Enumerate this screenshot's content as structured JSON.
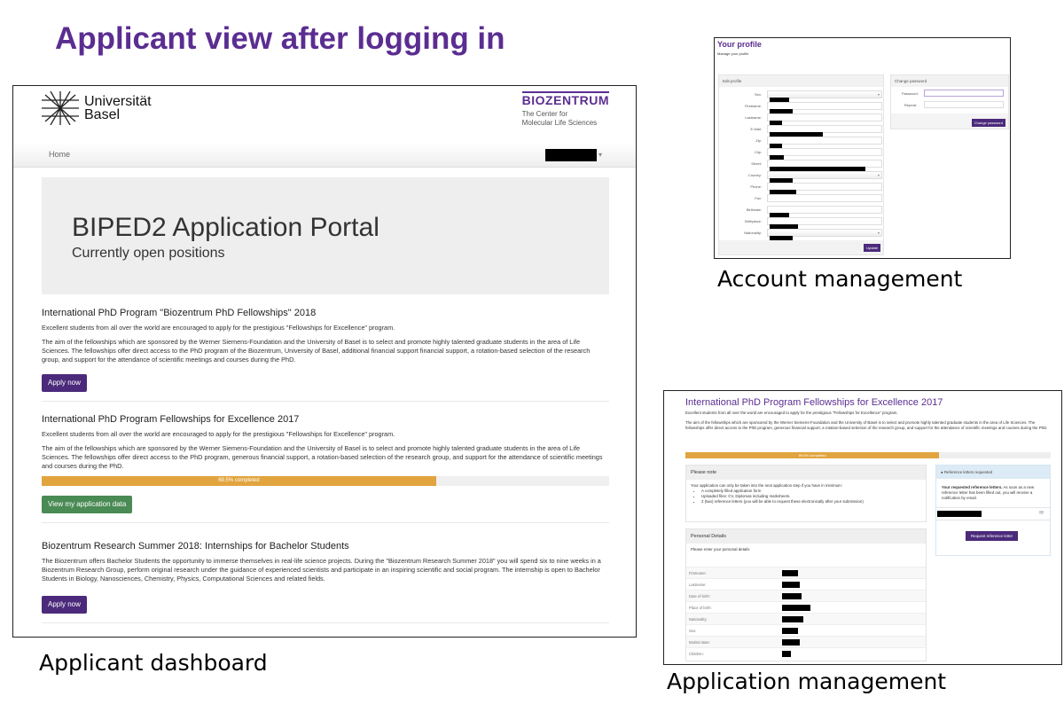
{
  "slide": {
    "title": "Applicant view after logging in",
    "captions": {
      "dashboard": "Applicant dashboard",
      "account": "Account management",
      "application": "Application management"
    }
  },
  "dashboard": {
    "logo_left": {
      "line1": "Universität",
      "line2": "Basel"
    },
    "logo_right": {
      "name": "BIOZENTRUM",
      "line1": "The Center for",
      "line2": "Molecular Life Sciences"
    },
    "nav": {
      "home": "Home",
      "user_menu_caret": "▾"
    },
    "jumbotron": {
      "title": "BIPED2 Application Portal",
      "subtitle": "Currently open positions"
    },
    "positions": [
      {
        "title": "International PhD Program \"Biozentrum PhD Fellowships\" 2018",
        "paragraphs": [
          "Excellent students from all over the world are encouraged to apply for the prestigious \"Fellowships for Excellence\" program.",
          "The aim of the fellowships which are sponsored by the Werner Siemens-Foundation and the University of Basel is to select and promote highly talented graduate students in the area of Life Sciences. The fellowships offer direct access to the PhD program of the Biozentrum, University of Basel, additional financial support financial support, a rotation-based selection of the research group, and support for the attendance of scientific meetings and courses during the PhD."
        ],
        "button": "Apply now"
      },
      {
        "title": "International PhD Program Fellowships for Excellence 2017",
        "paragraphs": [
          "Excellent students from all over the world are encouraged to apply for the prestigious \"Fellowships for Excellence\" program.",
          "The aim of the fellowships which are sponsored by the Werner Siemens-Foundation and the University of Basel is to select and promote highly talented graduate students in the area of Life Sciences. The fellowships offer direct access to the PhD program, generous financial support, a rotation-based selection of the research group, and support for the attendance of scientific meetings and courses during the PhD."
        ],
        "progress_percent": 69.5,
        "progress_label": "69.5% completed",
        "button": "View my application data"
      },
      {
        "title": "Biozentrum Research Summer 2018: Internships for Bachelor Students",
        "paragraphs": [
          "The Biozentrum offers Bachelor Students the opportunity to immerse themselves in real-life science projects. During the \"Biozentrum Research Summer 2018\" you will spend six to nine weeks in a Biozentrum Research Group, perform original research under the guidance of experienced scientists and participate in an inspiring scientific and social program. The internship is open to Bachelor Students in Biology, Nanosciences, Chemistry, Physics, Computational Sciences and related fields."
        ],
        "button": "Apply now"
      }
    ]
  },
  "profile": {
    "title": "Your profile",
    "subtitle": "Manage your profile",
    "edit_panel": "Edit profile",
    "fields": [
      "Sex:",
      "Firstname:",
      "Lastname:",
      "E-Mail:",
      "Zip:",
      "City:",
      "Street:",
      "Country:",
      "Phone:",
      "Fax:",
      "Birthdate:",
      "Birthplace:",
      "Nationality:"
    ],
    "update_button": "Update",
    "password_panel": "Change password",
    "password_label": "Password:",
    "repeat_label": "Repeat:",
    "change_password_button": "Change password"
  },
  "application": {
    "title": "International PhD Program Fellowships for Excellence 2017",
    "intro": "Excellent students from all over the world are encouraged to apply for the prestigious \"Fellowships for Excellence\" program.",
    "description": "The aim of the fellowships which are sponsored by the Werner Siemens-Foundation and the University of Basel is to select and promote highly talented graduate students in the area of Life Sciences. The fellowships offer direct access to the PhD program, generous financial support, a rotation-based selection of the research group, and support for the attendance of scientific meetings and courses during the PhD.",
    "progress_percent": 69.5,
    "progress_label": "69.5% completed",
    "note": {
      "title": "Please note",
      "text": "Your application can only be taken into the next application step if you have in minimum:",
      "items": [
        "A completely filled application form",
        "Uploaded files: CV, Diplomas including marksheets.",
        "2 (two) reference letters (you will be able to request these electronically after your submission)"
      ]
    },
    "personal": {
      "title": "Personal Details",
      "text": "Please enter your personal details",
      "fields": [
        "Firstname:",
        "Lastname:",
        "Date of birth:",
        "Place of birth:",
        "Nationality:",
        "Sex:",
        "Marital state:",
        "Children:"
      ]
    },
    "references": {
      "title": "Reference letters requested",
      "bold": "Your requested reference letters.",
      "text": " As soon as a new reference letter has been filled out, you will receive a notification by email.",
      "mail_icon": "envelope",
      "button": "Request reference letter"
    }
  },
  "colors": {
    "brand_purple": "#5b2d91",
    "button_purple": "#4b2a7b",
    "progress": "#e1a43e",
    "success_green": "#4a8a54"
  }
}
